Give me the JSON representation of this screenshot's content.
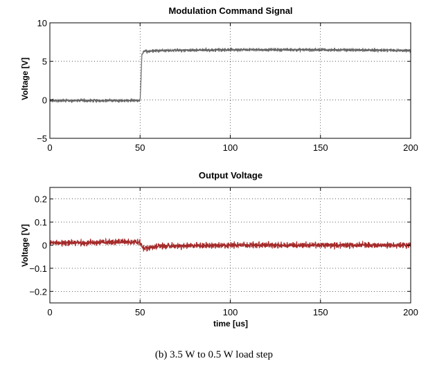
{
  "caption": "(b) 3.5 W to 0.5 W load step",
  "chart_data": [
    {
      "type": "line",
      "title": "Modulation Command Signal",
      "xlabel": "",
      "ylabel": "Voltage [V]",
      "xlim": [
        0,
        200
      ],
      "ylim": [
        -5,
        10
      ],
      "xticks": [
        0,
        50,
        100,
        150,
        200
      ],
      "yticks": [
        -5,
        0,
        5,
        10
      ],
      "grid": true,
      "series": [
        {
          "color": "#666666",
          "x": [
            0,
            50,
            50.5,
            51,
            52,
            60,
            100,
            150,
            200
          ],
          "y": [
            -0.1,
            -0.1,
            2.5,
            5.8,
            6.3,
            6.4,
            6.5,
            6.5,
            6.4
          ],
          "noise_amplitude": 0.28
        }
      ]
    },
    {
      "type": "line",
      "title": "Output Voltage",
      "xlabel": "time [us]",
      "ylabel": "Voltage [V]",
      "xlim": [
        0,
        200
      ],
      "ylim": [
        -0.25,
        0.25
      ],
      "xticks": [
        0,
        50,
        100,
        150,
        200
      ],
      "yticks": [
        -0.2,
        -0.1,
        0,
        0.1,
        0.2
      ],
      "grid": true,
      "series": [
        {
          "color": "#a52a2a",
          "x": [
            0,
            20,
            40,
            50,
            51,
            52,
            60,
            100,
            150,
            200
          ],
          "y": [
            0.01,
            0.01,
            0.015,
            0.012,
            -0.005,
            -0.015,
            -0.005,
            0,
            0,
            0
          ],
          "noise_amplitude": 0.018
        }
      ]
    }
  ]
}
